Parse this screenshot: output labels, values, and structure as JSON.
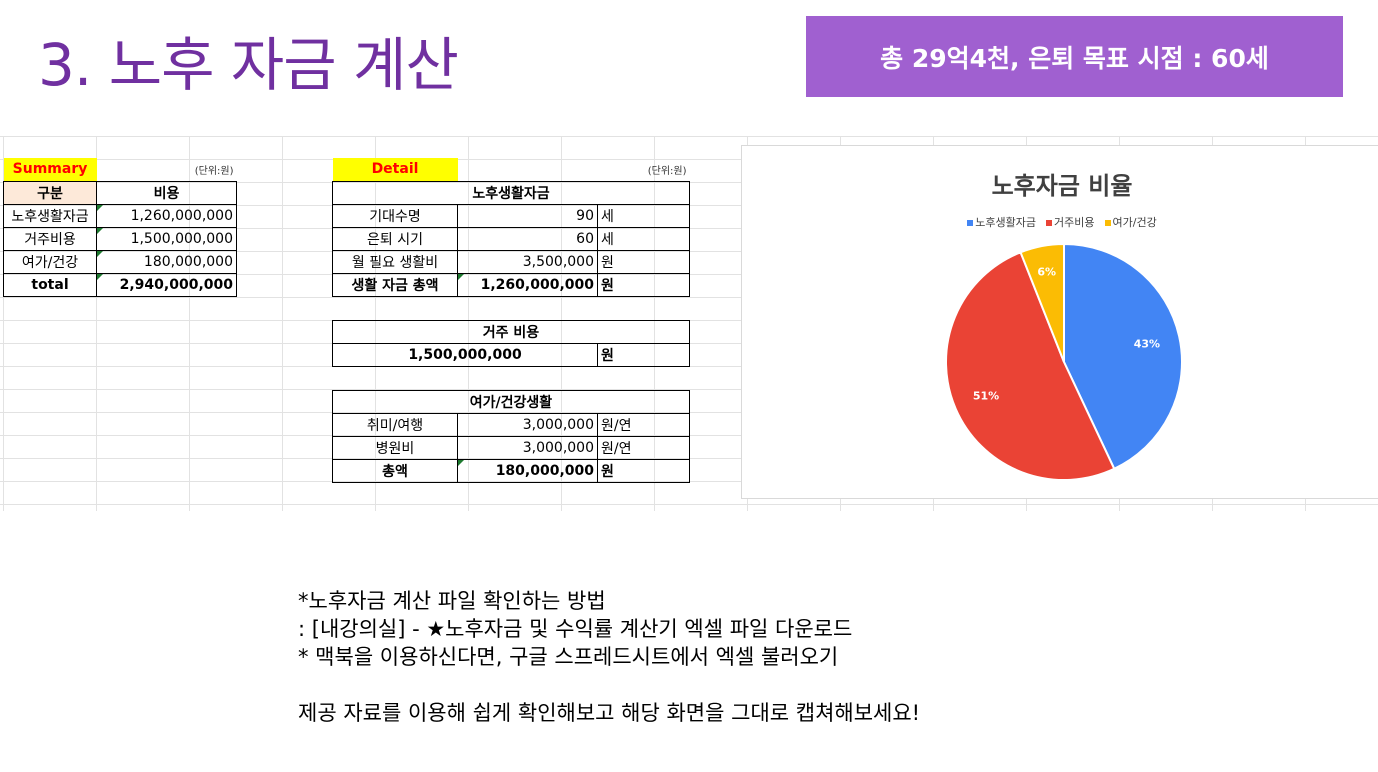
{
  "slide": {
    "title": "3. 노후 자금 계산",
    "banner": "총 29억4천, 은퇴 목표 시점  : 60세"
  },
  "summary": {
    "label": "Summary",
    "unit": "(단위:원)",
    "col_category": "구분",
    "col_cost": "비용",
    "rows": [
      {
        "name": "노후생활자금",
        "value": "1,260,000,000"
      },
      {
        "name": "거주비용",
        "value": "1,500,000,000"
      },
      {
        "name": "여가/건강",
        "value": "180,000,000"
      }
    ],
    "total_label": "total",
    "total_value": "2,940,000,000"
  },
  "detail": {
    "label": "Detail",
    "unit": "(단위:원)",
    "living": {
      "header": "노후생활자금",
      "rows": [
        {
          "name": "기대수명",
          "value": "90",
          "unit": "세"
        },
        {
          "name": "은퇴 시기",
          "value": "60",
          "unit": "세"
        },
        {
          "name": "월 필요 생활비",
          "value": "3,500,000",
          "unit": "원"
        }
      ],
      "total": {
        "name": "생활 자금 총액",
        "value": "1,260,000,000",
        "unit": "원"
      }
    },
    "housing": {
      "header": "거주 비용",
      "value": "1,500,000,000",
      "unit": "원"
    },
    "leisure": {
      "header": "여가/건강생활",
      "rows": [
        {
          "name": "취미/여행",
          "value": "3,000,000",
          "unit": "원/연"
        },
        {
          "name": "병원비",
          "value": "3,000,000",
          "unit": "원/연"
        }
      ],
      "total": {
        "name": "총액",
        "value": "180,000,000",
        "unit": "원"
      }
    }
  },
  "chart_data": {
    "type": "pie",
    "title": "노후자금 비율",
    "legend_position": "top",
    "categories": [
      "노후생활자금",
      "거주비용",
      "여가/건강"
    ],
    "values": [
      43,
      51,
      6
    ],
    "labels": [
      "43%",
      "51%",
      "6%"
    ],
    "colors": [
      "#4285f4",
      "#ea4335",
      "#fbbc04"
    ]
  },
  "notes": {
    "line1": "*노후자금 계산 파일 확인하는 방법",
    "line2": ": [내강의실] - ★노후자금 및 수익률 계산기 엑셀 파일 다운로드",
    "line3": "* 맥북을 이용하신다면, 구글 스프레드시트에서 엑셀 불러오기",
    "line4": "제공 자료를 이용해 쉽게 확인해보고 해당 화면을 그대로 캡쳐해보세요!"
  }
}
